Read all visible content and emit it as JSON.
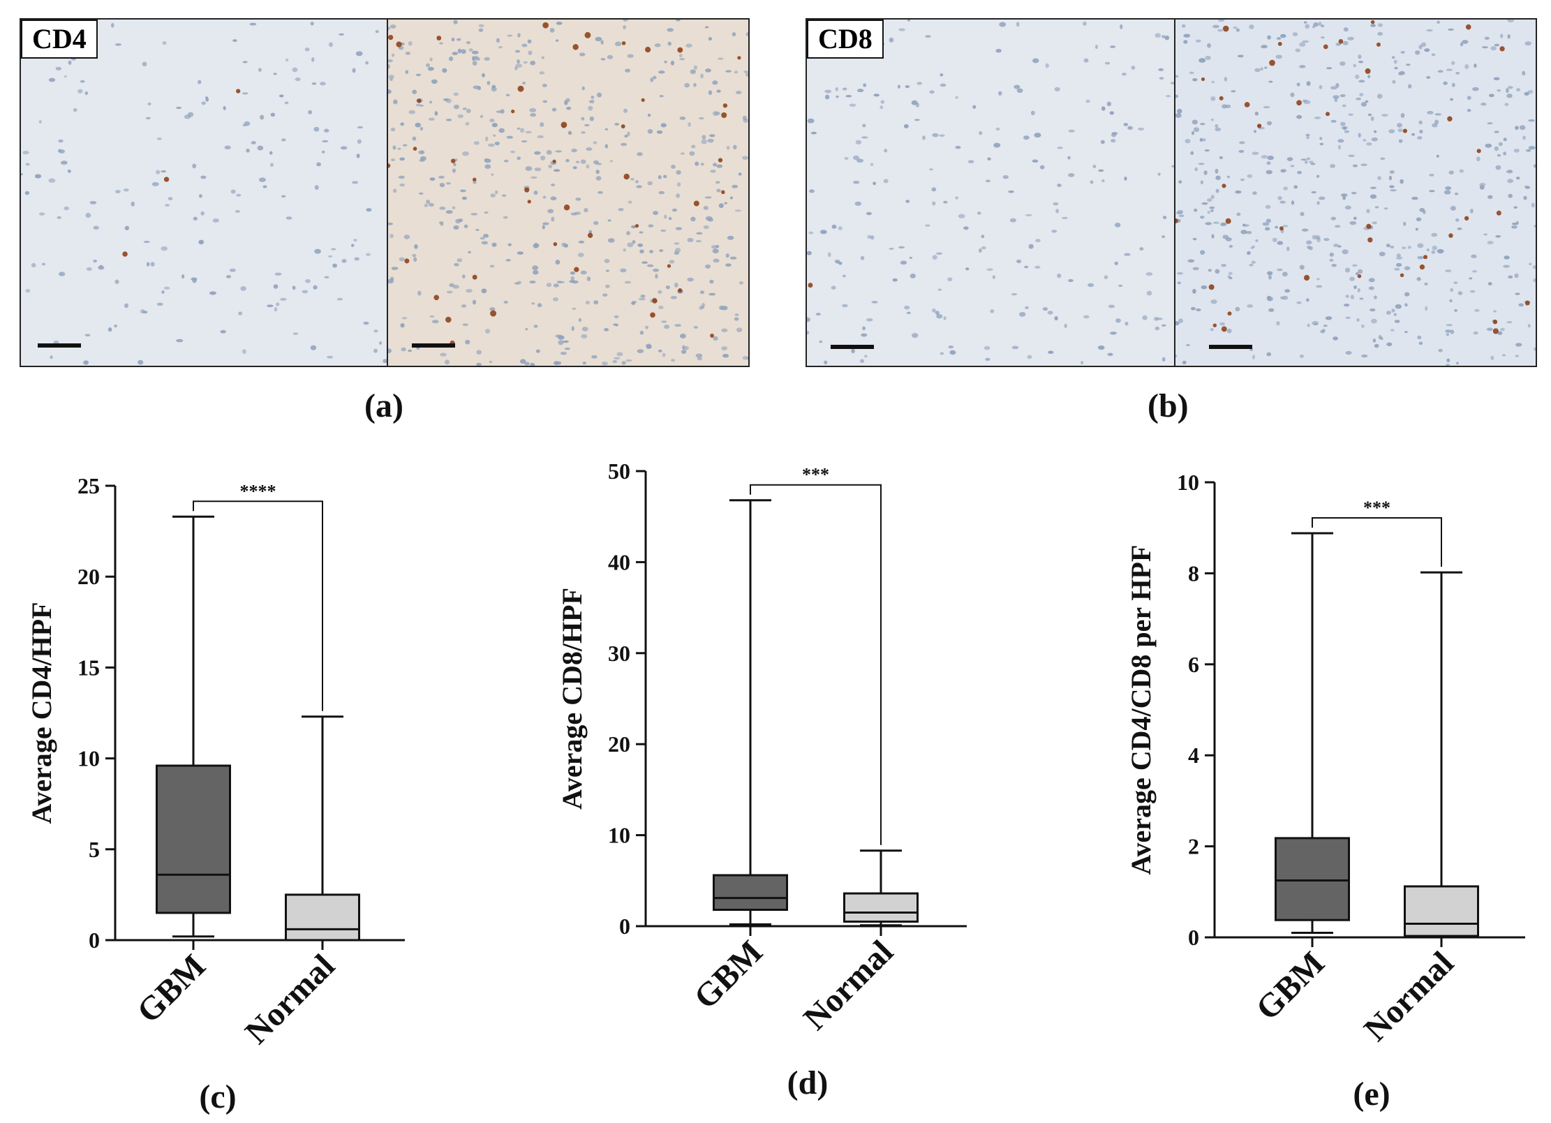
{
  "panels": {
    "a": {
      "label": "(a)",
      "stain": "CD4"
    },
    "b": {
      "label": "(b)",
      "stain": "CD8"
    }
  },
  "colors": {
    "gbm_box": "#646464",
    "normal_box": "#d2d2d2",
    "tissue_normal": "#e4e8ef",
    "tissue_cd4_tumor": "#e8ded3",
    "tissue_cd8_tumor": "#dfe5ee",
    "nucleus": "#8fa2bd",
    "dab": "#8b3a10"
  },
  "chart_data": [
    {
      "id": "c",
      "panel_label": "(c)",
      "type": "boxplot",
      "ylabel": "Average CD4/HPF",
      "ylim": [
        0,
        25
      ],
      "yticks": [
        0,
        5,
        10,
        15,
        20,
        25
      ],
      "categories": [
        "GBM",
        "Normal"
      ],
      "boxes": [
        {
          "name": "GBM",
          "min": 0.2,
          "q1": 1.5,
          "median": 3.6,
          "q3": 9.6,
          "max": 23.3
        },
        {
          "name": "Normal",
          "min": 0.0,
          "q1": 0.0,
          "median": 0.6,
          "q3": 2.5,
          "max": 12.3
        }
      ],
      "significance": "****"
    },
    {
      "id": "d",
      "panel_label": "(d)",
      "type": "boxplot",
      "ylabel": "Average CD8/HPF",
      "ylim": [
        0,
        50
      ],
      "yticks": [
        0,
        10,
        20,
        30,
        40,
        50
      ],
      "categories": [
        "GBM",
        "Normal"
      ],
      "boxes": [
        {
          "name": "GBM",
          "min": 0.2,
          "q1": 1.8,
          "median": 3.1,
          "q3": 5.6,
          "max": 46.8
        },
        {
          "name": "Normal",
          "min": 0.1,
          "q1": 0.5,
          "median": 1.5,
          "q3": 3.6,
          "max": 8.3
        }
      ],
      "significance": "***"
    },
    {
      "id": "e",
      "panel_label": "(e)",
      "type": "boxplot",
      "ylabel": "Average CD4/CD8 per HPF",
      "ylim": [
        0,
        10
      ],
      "yticks": [
        0,
        2,
        4,
        6,
        8,
        10
      ],
      "categories": [
        "GBM",
        "Normal"
      ],
      "boxes": [
        {
          "name": "GBM",
          "min": 0.1,
          "q1": 0.38,
          "median": 1.25,
          "q3": 2.18,
          "max": 8.88
        },
        {
          "name": "Normal",
          "min": 0.0,
          "q1": 0.03,
          "median": 0.3,
          "q3": 1.12,
          "max": 8.02
        }
      ],
      "significance": "***"
    }
  ]
}
